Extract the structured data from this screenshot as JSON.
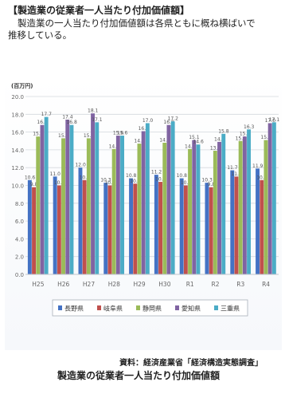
{
  "header": {
    "title": "【製造業の従業者一人当たり付加価値額】",
    "line1": "製造業の一人当たり付加価値額は各県ともに概ね横ばいで",
    "line2": "推移している。"
  },
  "source": "資料：経済産業省「経済構造実態調査」",
  "caption": "製造業の従業者一人当たり付加価値額",
  "chart_data": {
    "type": "bar",
    "unit_label": "(百万円)",
    "ylim": [
      0,
      20
    ],
    "yticks": [
      "0.0",
      "2.0",
      "4.0",
      "6.0",
      "8.0",
      "10.0",
      "12.0",
      "14.0",
      "16.0",
      "18.0",
      "20.0"
    ],
    "grid": true,
    "legend_position": "bottom",
    "categories": [
      "H25",
      "H26",
      "H27",
      "H28",
      "H29",
      "H30",
      "R1",
      "R2",
      "R3",
      "R4"
    ],
    "series": [
      {
        "name": "長野県",
        "color": "#4472c4",
        "values": [
          10.6,
          11.0,
          12.0,
          10.3,
          10.8,
          11.2,
          10.8,
          10.3,
          11.7,
          11.9
        ]
      },
      {
        "name": "岐阜県",
        "color": "#c0504d",
        "values": [
          9.8,
          10.0,
          10.6,
          10.0,
          10.2,
          10.4,
          10.0,
          9.8,
          11.0,
          10.6
        ]
      },
      {
        "name": "静岡県",
        "color": "#9bbb59",
        "values": [
          15.5,
          15.3,
          15.3,
          14.1,
          14.7,
          14.8,
          14.1,
          13.9,
          15.0,
          15.1
        ]
      },
      {
        "name": "愛知県",
        "color": "#8064a2",
        "values": [
          16.8,
          17.4,
          18.1,
          15.6,
          16.1,
          16.8,
          15.1,
          14.9,
          15.5,
          17.0
        ]
      },
      {
        "name": "三重県",
        "color": "#4bacc6",
        "values": [
          17.7,
          16.8,
          17.1,
          15.6,
          17.0,
          17.2,
          14.6,
          15.8,
          16.3,
          17.1
        ]
      }
    ]
  }
}
